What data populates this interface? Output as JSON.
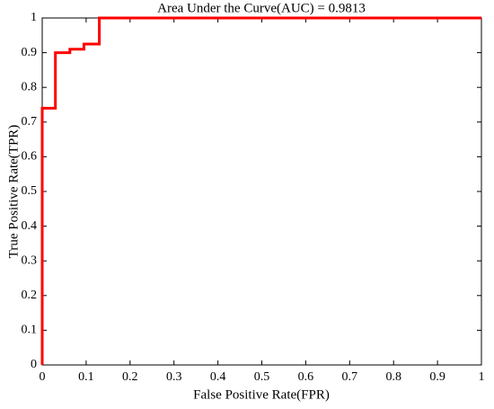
{
  "chart_data": {
    "type": "line",
    "title": "Area Under the Curve(AUC) = 0.9813",
    "x_label": "False Positive Rate(FPR)",
    "y_label": "True Positive Rate(TPR)",
    "x": [
      0,
      0,
      0.03,
      0.03,
      0.063,
      0.063,
      0.095,
      0.095,
      0.13,
      0.13,
      1
    ],
    "values": [
      0,
      0.74,
      0.74,
      0.9,
      0.9,
      0.91,
      0.91,
      0.925,
      0.925,
      1,
      1
    ],
    "color": "#ff0000",
    "xlim": [
      0,
      1
    ],
    "xticks": [
      0,
      0.1,
      0.2,
      0.3,
      0.4,
      0.5,
      0.6,
      0.7,
      0.8,
      0.9,
      1
    ],
    "ylim": [
      0,
      1
    ],
    "yticks": [
      0,
      0.1,
      0.2,
      0.3,
      0.4,
      0.5,
      0.6,
      0.7,
      0.8,
      0.9,
      1
    ]
  }
}
